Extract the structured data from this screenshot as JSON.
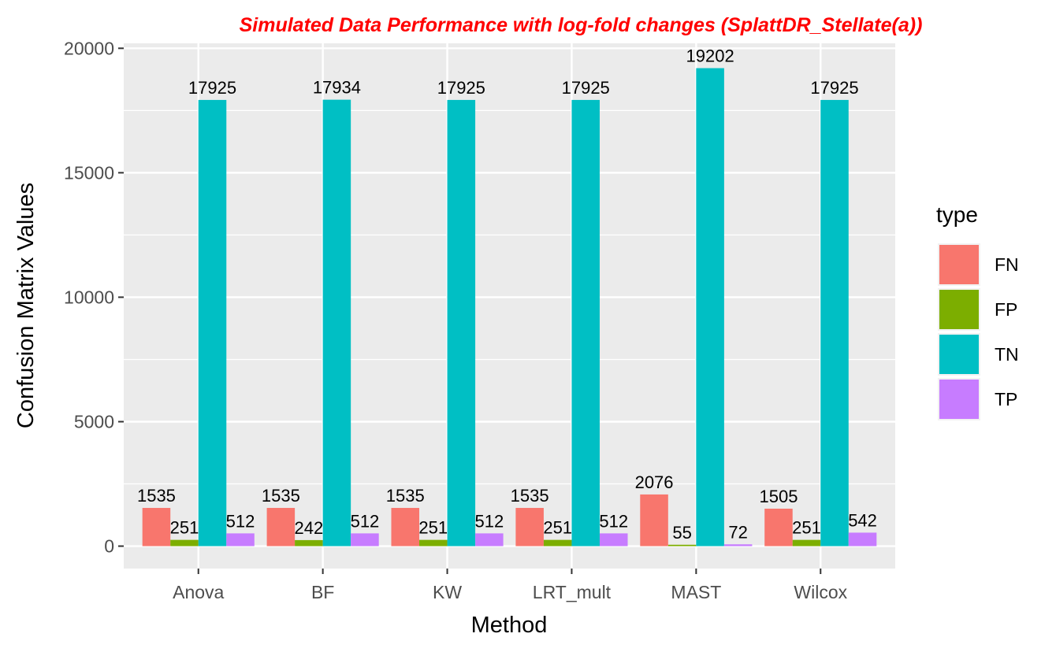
{
  "chart_data": {
    "type": "bar",
    "title": "Simulated Data Performance with log-fold changes (SplattDR_Stellate(a))",
    "xlabel": "Method",
    "ylabel": "Confusion Matrix Values",
    "categories": [
      "Anova",
      "BF",
      "KW",
      "LRT_mult",
      "MAST",
      "Wilcox"
    ],
    "series": [
      {
        "name": "FN",
        "color": "#F8766D",
        "values": [
          1535,
          1535,
          1535,
          1535,
          2076,
          1505
        ]
      },
      {
        "name": "FP",
        "color": "#7CAE00",
        "values": [
          251,
          242,
          251,
          251,
          55,
          251
        ]
      },
      {
        "name": "TN",
        "color": "#00BFC4",
        "values": [
          17925,
          17934,
          17925,
          17925,
          19202,
          17925
        ]
      },
      {
        "name": "TP",
        "color": "#C77CFF",
        "values": [
          512,
          512,
          512,
          512,
          72,
          542
        ]
      }
    ],
    "ylim": [
      -900,
      20200
    ],
    "yticks": [
      0,
      5000,
      10000,
      15000,
      20000
    ],
    "ytick_labels": [
      "0",
      "5000",
      "10000",
      "15000",
      "20000"
    ],
    "grid": true,
    "legend": {
      "title": "type",
      "position": "right"
    },
    "colors": {
      "title": "#FF0000",
      "panel_background": "#EBEBEB",
      "grid": "#FFFFFF"
    }
  }
}
